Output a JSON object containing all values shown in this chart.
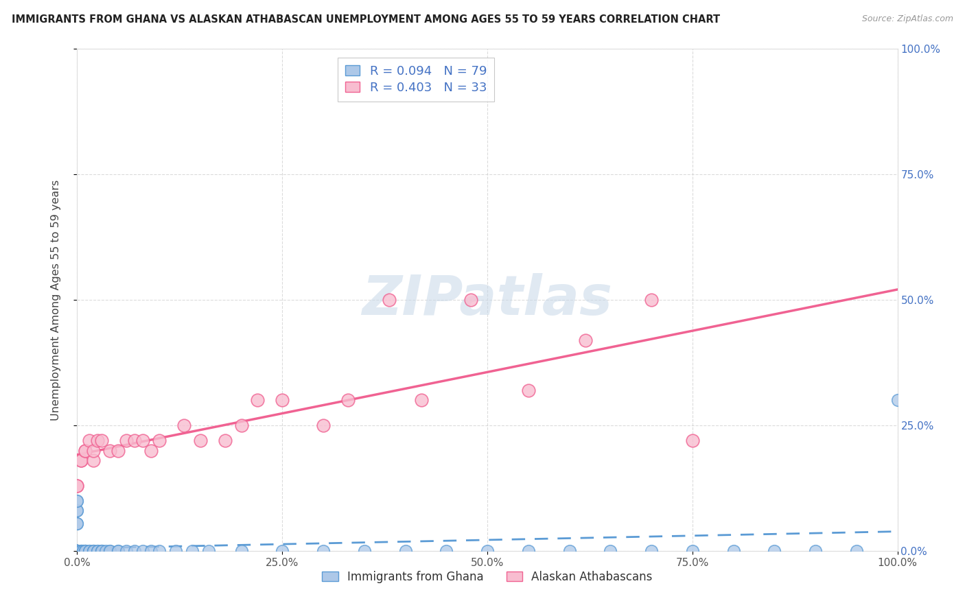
{
  "title": "IMMIGRANTS FROM GHANA VS ALASKAN ATHABASCAN UNEMPLOYMENT AMONG AGES 55 TO 59 YEARS CORRELATION CHART",
  "source": "Source: ZipAtlas.com",
  "ylabel": "Unemployment Among Ages 55 to 59 years",
  "xlim": [
    0,
    1.0
  ],
  "ylim": [
    0,
    1.0
  ],
  "ghana_R": 0.094,
  "ghana_N": 79,
  "athabascan_R": 0.403,
  "athabascan_N": 33,
  "ghana_fill_color": "#adc8e8",
  "ghana_edge_color": "#5b9bd5",
  "athabascan_fill_color": "#f8bdd0",
  "athabascan_edge_color": "#f06292",
  "ghana_line_color": "#5b9bd5",
  "athabascan_line_color": "#f06292",
  "legend_color": "#4472c4",
  "watermark_color": "#d0dce8",
  "background_color": "#ffffff",
  "grid_color": "#cccccc",
  "title_color": "#222222",
  "source_color": "#999999",
  "ytick_right_color": "#4472c4",
  "ghana_label": "Immigrants from Ghana",
  "athabascan_label": "Alaskan Athabascans",
  "ghana_scatter_x": [
    0.0,
    0.0,
    0.0,
    0.0,
    0.0,
    0.0,
    0.0,
    0.0,
    0.0,
    0.0,
    0.0,
    0.0,
    0.0,
    0.0,
    0.0,
    0.0,
    0.0,
    0.0,
    0.0,
    0.0,
    0.0,
    0.0,
    0.0,
    0.0,
    0.0,
    0.0,
    0.0,
    0.0,
    0.0,
    0.0,
    0.005,
    0.005,
    0.005,
    0.007,
    0.007,
    0.01,
    0.01,
    0.01,
    0.01,
    0.015,
    0.015,
    0.02,
    0.02,
    0.02,
    0.025,
    0.025,
    0.03,
    0.03,
    0.03,
    0.035,
    0.04,
    0.04,
    0.05,
    0.05,
    0.06,
    0.07,
    0.08,
    0.09,
    0.1,
    0.12,
    0.14,
    0.16,
    0.2,
    0.25,
    0.3,
    0.35,
    0.4,
    0.45,
    0.5,
    0.55,
    0.6,
    0.65,
    0.7,
    0.75,
    0.8,
    0.85,
    0.9,
    0.95,
    1.0
  ],
  "ghana_scatter_y": [
    0.0,
    0.0,
    0.0,
    0.0,
    0.0,
    0.0,
    0.0,
    0.0,
    0.0,
    0.0,
    0.0,
    0.0,
    0.0,
    0.0,
    0.0,
    0.0,
    0.0,
    0.0,
    0.0,
    0.0,
    0.0,
    0.0,
    0.0,
    0.0,
    0.055,
    0.055,
    0.08,
    0.08,
    0.1,
    0.1,
    0.0,
    0.0,
    0.0,
    0.0,
    0.0,
    0.0,
    0.0,
    0.0,
    0.0,
    0.0,
    0.0,
    0.0,
    0.0,
    0.0,
    0.0,
    0.0,
    0.0,
    0.0,
    0.0,
    0.0,
    0.0,
    0.0,
    0.0,
    0.0,
    0.0,
    0.0,
    0.0,
    0.0,
    0.0,
    0.0,
    0.0,
    0.0,
    0.0,
    0.0,
    0.0,
    0.0,
    0.0,
    0.0,
    0.0,
    0.0,
    0.0,
    0.0,
    0.0,
    0.0,
    0.0,
    0.0,
    0.0,
    0.0,
    0.3
  ],
  "athabascan_scatter_x": [
    0.0,
    0.0,
    0.005,
    0.005,
    0.01,
    0.01,
    0.015,
    0.02,
    0.02,
    0.025,
    0.03,
    0.04,
    0.05,
    0.06,
    0.07,
    0.08,
    0.09,
    0.1,
    0.13,
    0.15,
    0.18,
    0.2,
    0.22,
    0.25,
    0.3,
    0.33,
    0.38,
    0.42,
    0.48,
    0.55,
    0.62,
    0.7,
    0.75
  ],
  "athabascan_scatter_y": [
    0.13,
    0.13,
    0.18,
    0.18,
    0.2,
    0.2,
    0.22,
    0.18,
    0.2,
    0.22,
    0.22,
    0.2,
    0.2,
    0.22,
    0.22,
    0.22,
    0.2,
    0.22,
    0.25,
    0.22,
    0.22,
    0.25,
    0.3,
    0.3,
    0.25,
    0.3,
    0.5,
    0.3,
    0.5,
    0.32,
    0.42,
    0.5,
    0.22
  ]
}
